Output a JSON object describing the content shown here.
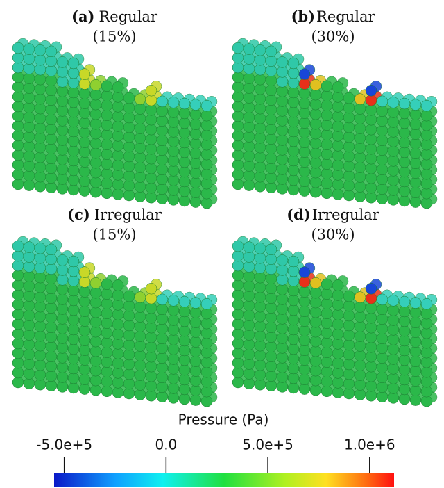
{
  "panels": [
    {
      "tag": "(a)",
      "name": "Regular",
      "fraction": "(15%)"
    },
    {
      "tag": "(b)",
      "name": "Regular",
      "fraction": "(30%)"
    },
    {
      "tag": "(c)",
      "name": "Irregular",
      "fraction": "(15%)"
    },
    {
      "tag": "(d)",
      "name": "Irregular",
      "fraction": "(30%)"
    }
  ],
  "colorbar": {
    "title": "Pressure (Pa)",
    "lim": [
      -550000,
      1120000
    ],
    "ticks": [
      {
        "value": -500000,
        "label": "-5.0e+5"
      },
      {
        "value": 0,
        "label": "0.0"
      },
      {
        "value": 500000,
        "label": "5.0e+5"
      },
      {
        "value": 1000000,
        "label": "1.0e+6"
      }
    ]
  }
}
